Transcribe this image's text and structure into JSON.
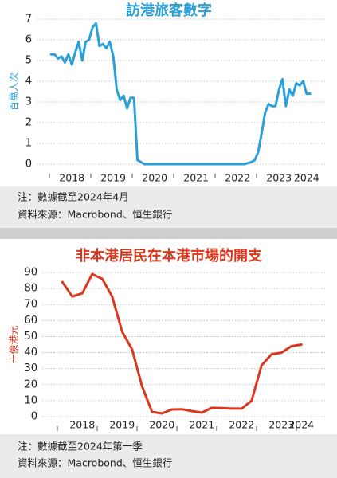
{
  "chart_data": [
    {
      "type": "line",
      "title": "訪港旅客數字",
      "y_label": "百萬人次",
      "color": "#2a9fd8",
      "categories": [
        null,
        null,
        null,
        null,
        null,
        null,
        "2018",
        null,
        null,
        null,
        null,
        null,
        null,
        null,
        null,
        null,
        null,
        null,
        "2019",
        null,
        null,
        null,
        null,
        null,
        null,
        null,
        null,
        null,
        null,
        null,
        "2020",
        null,
        null,
        null,
        null,
        null,
        null,
        null,
        null,
        null,
        null,
        null,
        "2021",
        null,
        null,
        null,
        null,
        null,
        null,
        null,
        null,
        null,
        null,
        null,
        "2022",
        null,
        null,
        null,
        null,
        null,
        null,
        null,
        null,
        null,
        null,
        null,
        "2023",
        null,
        null,
        null,
        null,
        null,
        null,
        null,
        "2024",
        null
      ],
      "values": [
        5.3,
        5.3,
        5.1,
        5.2,
        4.9,
        5.3,
        4.8,
        5.4,
        5.9,
        5.0,
        5.9,
        6.0,
        6.6,
        6.8,
        5.7,
        5.8,
        5.6,
        5.9,
        5.2,
        3.6,
        3.1,
        3.3,
        2.7,
        3.2,
        3.2,
        0.2,
        0.1,
        0.0,
        0.0,
        0.0,
        0.0,
        0.0,
        0.0,
        0.0,
        0.0,
        0.0,
        0.0,
        0.0,
        0.0,
        0.0,
        0.0,
        0.0,
        0.0,
        0.0,
        0.0,
        0.0,
        0.0,
        0.0,
        0.0,
        0.0,
        0.0,
        0.0,
        0.0,
        0.0,
        0.0,
        0.0,
        0.0,
        0.05,
        0.1,
        0.2,
        0.6,
        1.5,
        2.5,
        2.9,
        2.8,
        2.8,
        3.6,
        4.1,
        2.8,
        3.6,
        3.3,
        3.9,
        3.8,
        4.0,
        3.4,
        3.4
      ],
      "ylim": [
        0,
        7
      ],
      "yticks": [
        0,
        1,
        2,
        3,
        4,
        5,
        6,
        7
      ],
      "grid": true,
      "note": "注：數據截至2024年4月",
      "source": "資料來源：Macrobond、恒生銀行"
    },
    {
      "type": "line",
      "title": "非本港居民在本港市場的開支",
      "y_label": "十億港元",
      "color": "#d9381e",
      "categories": [
        null,
        null,
        "2018",
        null,
        null,
        null,
        "2019",
        null,
        null,
        null,
        "2020",
        null,
        null,
        null,
        "2021",
        null,
        null,
        null,
        "2022",
        null,
        null,
        null,
        "2023",
        null,
        "2024"
      ],
      "values": [
        84,
        75,
        77,
        89,
        86,
        75,
        53,
        42,
        19,
        3,
        2,
        4.5,
        4.6,
        3.5,
        2.5,
        5.5,
        5.3,
        5,
        5,
        10,
        32,
        39,
        40,
        44,
        45
      ],
      "ylim": [
        0,
        90
      ],
      "yticks": [
        0,
        10,
        20,
        30,
        40,
        50,
        60,
        70,
        80,
        90
      ],
      "grid": true,
      "note": "注：數據截至2024年第一季",
      "source": "資料來源：Macrobond、恒生銀行"
    }
  ]
}
